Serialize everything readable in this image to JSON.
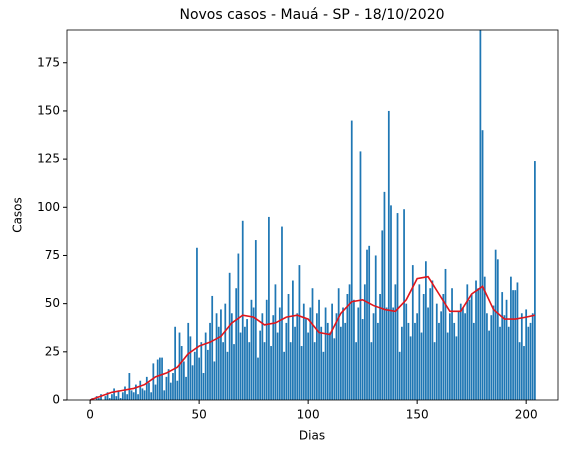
{
  "chart_data": {
    "type": "bar",
    "title": "Novos casos - Mauá - SP - 18/10/2020",
    "xlabel": "Dias",
    "ylabel": "Casos",
    "xlim": [
      -10.6,
      214.6
    ],
    "xticks": [
      0,
      50,
      100,
      150,
      200
    ],
    "ylim": [
      0,
      192
    ],
    "yticks": [
      0,
      25,
      50,
      75,
      100,
      125,
      150,
      175
    ],
    "bars": {
      "color": "#1f77b4",
      "x": [
        0,
        1,
        2,
        3,
        4,
        5,
        6,
        7,
        8,
        9,
        10,
        11,
        12,
        13,
        14,
        15,
        16,
        17,
        18,
        19,
        20,
        21,
        22,
        23,
        24,
        25,
        26,
        27,
        28,
        29,
        30,
        31,
        32,
        33,
        34,
        35,
        36,
        37,
        38,
        39,
        40,
        41,
        42,
        43,
        44,
        45,
        46,
        47,
        48,
        49,
        50,
        51,
        52,
        53,
        54,
        55,
        56,
        57,
        58,
        59,
        60,
        61,
        62,
        63,
        64,
        65,
        66,
        67,
        68,
        69,
        70,
        71,
        72,
        73,
        74,
        75,
        76,
        77,
        78,
        79,
        80,
        81,
        82,
        83,
        84,
        85,
        86,
        87,
        88,
        89,
        90,
        91,
        92,
        93,
        94,
        95,
        96,
        97,
        98,
        99,
        100,
        101,
        102,
        103,
        104,
        105,
        106,
        107,
        108,
        109,
        110,
        111,
        112,
        113,
        114,
        115,
        116,
        117,
        118,
        119,
        120,
        121,
        122,
        123,
        124,
        125,
        126,
        127,
        128,
        129,
        130,
        131,
        132,
        133,
        134,
        135,
        136,
        137,
        138,
        139,
        140,
        141,
        142,
        143,
        144,
        145,
        146,
        147,
        148,
        149,
        150,
        151,
        152,
        153,
        154,
        155,
        156,
        157,
        158,
        159,
        160,
        161,
        162,
        163,
        164,
        165,
        166,
        167,
        168,
        169,
        170,
        171,
        172,
        173,
        174,
        175,
        176,
        177,
        178,
        179,
        180,
        181,
        182,
        183,
        184,
        185,
        186,
        187,
        188,
        189,
        190,
        191,
        192,
        193,
        194,
        195,
        196,
        197,
        198,
        199,
        200,
        201,
        202,
        203,
        204
      ],
      "values": [
        0,
        1,
        0,
        2,
        1,
        3,
        0,
        2,
        4,
        1,
        3,
        6,
        2,
        5,
        1,
        4,
        7,
        3,
        14,
        5,
        4,
        8,
        3,
        10,
        6,
        5,
        12,
        9,
        4,
        19,
        8,
        21,
        22,
        22,
        5,
        12,
        16,
        9,
        14,
        38,
        10,
        35,
        28,
        20,
        12,
        40,
        33,
        18,
        25,
        79,
        22,
        30,
        14,
        35,
        26,
        40,
        54,
        20,
        45,
        38,
        47,
        30,
        50,
        25,
        66,
        45,
        29,
        58,
        76,
        35,
        93,
        38,
        42,
        30,
        52,
        48,
        83,
        22,
        36,
        45,
        30,
        52,
        95,
        28,
        44,
        60,
        35,
        48,
        90,
        25,
        40,
        55,
        30,
        62,
        38,
        45,
        70,
        28,
        50,
        42,
        35,
        48,
        58,
        30,
        45,
        52,
        38,
        25,
        48,
        40,
        35,
        50,
        32,
        45,
        58,
        38,
        48,
        40,
        55,
        60,
        145,
        52,
        30,
        48,
        129,
        42,
        60,
        78,
        80,
        30,
        45,
        75,
        40,
        55,
        88,
        108,
        48,
        150,
        101,
        48,
        60,
        97,
        25,
        38,
        99,
        50,
        40,
        33,
        70,
        40,
        45,
        60,
        35,
        55,
        72,
        48,
        58,
        62,
        30,
        50,
        40,
        46,
        55,
        68,
        35,
        45,
        58,
        40,
        33,
        46,
        50,
        48,
        45,
        60,
        52,
        55,
        40,
        62,
        58,
        192,
        140,
        64,
        45,
        36,
        44,
        49,
        78,
        73,
        38,
        56,
        44,
        52,
        38,
        64,
        57,
        57,
        61,
        30,
        45,
        28,
        47,
        38,
        40,
        45,
        124
      ]
    },
    "line": {
      "color": "#e0161c",
      "x": [
        0,
        5,
        10,
        15,
        20,
        25,
        30,
        35,
        40,
        45,
        50,
        55,
        60,
        65,
        70,
        75,
        80,
        85,
        90,
        95,
        100,
        105,
        110,
        115,
        120,
        125,
        130,
        135,
        140,
        145,
        150,
        155,
        160,
        165,
        170,
        175,
        180,
        185,
        190,
        195,
        200,
        204
      ],
      "values": [
        0,
        2,
        4,
        5,
        6,
        8,
        12,
        14,
        17,
        24,
        28,
        30,
        33,
        40,
        44,
        43,
        39,
        40,
        43,
        44,
        42,
        35,
        34,
        45,
        51,
        52,
        49,
        47,
        46,
        52,
        63,
        64,
        55,
        46,
        46,
        55,
        59,
        47,
        42,
        42,
        43,
        44
      ]
    }
  }
}
